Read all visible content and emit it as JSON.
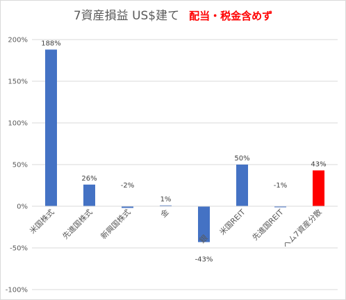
{
  "chart_data": {
    "type": "bar",
    "title": "7資産損益 US$建て",
    "subtitle": "配当・税金含めず",
    "categories": [
      "米国株式",
      "先進国株式",
      "新興国株式",
      "金",
      "銀",
      "米国REIT",
      "先進国REIT",
      "ヘム7資産分散"
    ],
    "values": [
      188,
      26,
      -2,
      1,
      -43,
      50,
      -1,
      43
    ],
    "value_labels": [
      "188%",
      "26%",
      "-2%",
      "1%",
      "-43%",
      "50%",
      "-1%",
      "43%"
    ],
    "bar_colors": [
      "#4472c4",
      "#4472c4",
      "#4472c4",
      "#4472c4",
      "#4472c4",
      "#4472c4",
      "#4472c4",
      "#ff0000"
    ],
    "yticks": [
      "200%",
      "150%",
      "100%",
      "50%",
      "0%",
      "-50%",
      "-100%"
    ],
    "ylim": [
      -100,
      200
    ],
    "grid": true,
    "colors": {
      "title": "#595959",
      "subtitle": "#ff0000",
      "grid": "#d9d9d9"
    }
  }
}
